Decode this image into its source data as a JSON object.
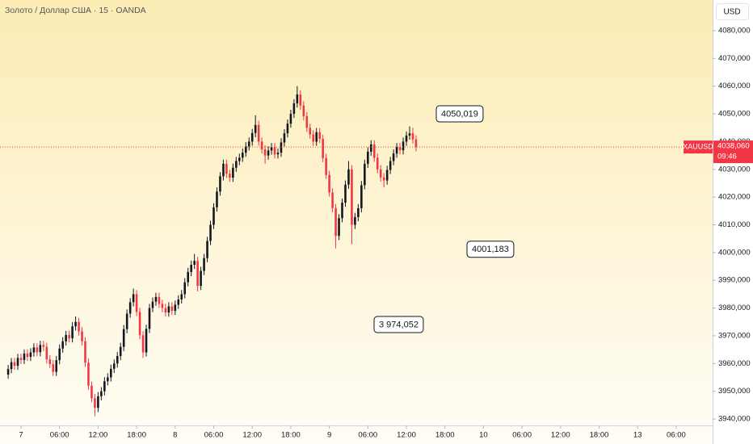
{
  "chart_data": {
    "type": "candlestick",
    "title": "Золото / Доллар США · 15 · OANDA",
    "currency": "USD",
    "symbol": "XAUUSD",
    "countdown": "09:46",
    "up_color": "#131722",
    "down_color": "#f23645",
    "x": [
      -2,
      -1.5,
      -1,
      -0.5,
      0,
      0.5,
      1,
      1.5,
      2,
      2.5,
      3,
      3.5,
      4,
      4.5,
      5,
      5.5,
      6,
      6.5,
      7,
      7.5,
      8,
      8.5,
      9,
      9.5,
      10,
      10.5,
      11,
      11.5,
      12,
      12.5,
      13,
      13.5,
      14,
      14.5,
      15,
      15.5,
      16,
      16.5,
      17,
      17.5,
      18,
      18.5,
      19,
      19.5,
      20,
      20.5,
      21,
      21.5,
      22,
      22.5,
      23,
      23.5,
      24,
      24.5,
      25,
      25.5,
      26,
      26.5,
      27,
      27.5,
      28,
      28.5,
      29,
      29.5,
      30,
      30.5,
      31,
      31.5,
      32,
      32.5,
      33,
      33.5,
      34,
      34.5,
      35,
      35.5,
      36,
      36.5,
      37,
      37.5,
      38,
      38.5,
      39,
      39.5,
      40,
      40.5,
      41,
      41.5,
      42,
      42.5,
      43,
      43.5,
      44,
      44.5,
      45,
      45.5,
      46,
      46.5,
      47,
      47.5,
      48,
      48.5,
      49,
      49.5,
      50,
      50.5,
      51,
      51.5,
      52,
      52.5,
      53,
      53.5,
      54,
      54.5,
      55,
      55.5,
      56,
      56.5,
      57,
      57.5,
      58,
      58.5,
      59,
      59.5,
      60,
      60.5,
      61,
      61.5
    ],
    "open": [
      3956,
      3958,
      3960.5,
      3959.2,
      3962,
      3961.3,
      3963.6,
      3962.4,
      3964,
      3965.8,
      3964.1,
      3966.7,
      3966,
      3961.5,
      3959.8,
      3957,
      3961.2,
      3965.4,
      3968,
      3970.3,
      3969.1,
      3973.4,
      3975,
      3971.6,
      3968,
      3960.3,
      3952,
      3947.5,
      3944,
      3948.2,
      3950,
      3953.6,
      3955,
      3958.1,
      3960,
      3962.7,
      3966,
      3972.4,
      3978,
      3982.1,
      3985,
      3978.6,
      3970.2,
      3964,
      3972.5,
      3980,
      3982.3,
      3984,
      3981.5,
      3980,
      3978.4,
      3980.6,
      3979,
      3981.2,
      3983.1,
      3985,
      3989.3,
      3993,
      3995.6,
      3997,
      3988,
      3993.4,
      3998,
      4004.2,
      4010,
      4016.3,
      4022,
      4027.5,
      4032,
      4028.4,
      4027,
      4030.6,
      4033,
      4034.2,
      4036,
      4038.3,
      4040,
      4043.1,
      4046,
      4040,
      4037.2,
      4035,
      4036.8,
      4038,
      4035.4,
      4036,
      4039.7,
      4043,
      4046.5,
      4050,
      4053.8,
      4057,
      4053,
      4049.2,
      4045,
      4042.6,
      4040,
      4043.4,
      4041,
      4034.1,
      4028,
      4021.7,
      4016,
      4006,
      4012.4,
      4018,
      4024.5,
      4030,
      4010,
      4012.8,
      4016,
      4024.3,
      4032,
      4036.4,
      4039,
      4034.2,
      4030,
      4027.1,
      4026,
      4029.8,
      4033,
      4035.7,
      4038,
      4036.9,
      4040,
      4042.2,
      4043,
      4040.8
    ],
    "high": [
      3959.5,
      3962,
      3962,
      3963.5,
      3963.5,
      3965.1,
      3965.1,
      3965.5,
      3967.3,
      3967.3,
      3968.2,
      3968.2,
      3967.5,
      3963,
      3961.3,
      3962.7,
      3966.9,
      3969.5,
      3971.8,
      3971.8,
      3974.9,
      3977,
      3976.5,
      3973.1,
      3969.5,
      3961.8,
      3953.5,
      3949,
      3949.7,
      3951.5,
      3955.1,
      3956.5,
      3959.6,
      3961.5,
      3964.2,
      3967.5,
      3973.9,
      3979.5,
      3983.6,
      3987,
      3986.5,
      3980.1,
      3971.7,
      3974,
      3981.5,
      3983.8,
      3985.5,
      3985.5,
      3983,
      3981.5,
      3982.1,
      3982.1,
      3982.7,
      3984.6,
      3986.5,
      3990.8,
      3994.5,
      3997.1,
      3999.5,
      3998.5,
      3994.9,
      3999.5,
      4005.7,
      4011.5,
      4017.8,
      4023.5,
      4029,
      4033.5,
      4033.5,
      4029.9,
      4032.1,
      4034.5,
      4035.7,
      4037.5,
      4039.8,
      4041.5,
      4044.6,
      4049.5,
      4047.5,
      4041.5,
      4038.7,
      4038.3,
      4039.5,
      4039.5,
      4037.5,
      4041.2,
      4044.5,
      4048,
      4051.5,
      4055.3,
      4060,
      4058.5,
      4054.5,
      4050.7,
      4046.5,
      4044.1,
      4044.9,
      4044.9,
      4042.5,
      4035.6,
      4029.5,
      4023.2,
      4017.5,
      4013.9,
      4019.5,
      4026,
      4033,
      4031.5,
      4014.3,
      4017.5,
      4025.8,
      4033.5,
      4037.9,
      4040.5,
      4040.5,
      4035.7,
      4031.5,
      4028.6,
      4031.3,
      4034.5,
      4037.2,
      4039.5,
      4039.5,
      4041.5,
      4043.7,
      4045.5,
      4045,
      4042.3
    ],
    "low": [
      3954.5,
      3956.5,
      3957.7,
      3957.7,
      3959.8,
      3959.8,
      3960.9,
      3960.9,
      3962.5,
      3962.6,
      3962.6,
      3964.5,
      3960,
      3958.3,
      3955.5,
      3955.5,
      3959.7,
      3963.9,
      3966.5,
      3967.6,
      3967.6,
      3971.9,
      3970.1,
      3966.5,
      3958.8,
      3950.5,
      3946,
      3941,
      3942.5,
      3946.7,
      3948.5,
      3952.1,
      3953.5,
      3956.6,
      3958.5,
      3961.2,
      3964.5,
      3970.9,
      3976.5,
      3980.6,
      3977.1,
      3968.7,
      3962,
      3962.5,
      3971,
      3978.5,
      3980.8,
      3980,
      3978.5,
      3976.9,
      3976.9,
      3977.5,
      3977.5,
      3979.7,
      3981.6,
      3983.5,
      3987.8,
      3991.5,
      3994.1,
      3986,
      3986.5,
      3991.9,
      3996.5,
      4002.7,
      4008.5,
      4014.8,
      4020.5,
      4026,
      4026.9,
      4025.5,
      4025.5,
      4029.1,
      4031.5,
      4032.7,
      4034.5,
      4036.8,
      4038.5,
      4041.6,
      4038.5,
      4035.7,
      4032,
      4033.5,
      4035.3,
      4033.9,
      4033.9,
      4034.5,
      4038.2,
      4041.5,
      4045,
      4048.5,
      4052.3,
      4051.5,
      4047.7,
      4043.5,
      4041.1,
      4038.5,
      4038.5,
      4039.5,
      4032.6,
      4026.5,
      4020.2,
      4014.5,
      4001.5,
      4004.5,
      4010.9,
      4016.5,
      4023,
      4003,
      4008.5,
      4011.3,
      4014.5,
      4022.8,
      4030.5,
      4034.9,
      4032.7,
      4028.5,
      4025.6,
      4023.5,
      4024.5,
      4028.3,
      4031.5,
      4034.2,
      4035.4,
      4035.4,
      4038.5,
      4040.7,
      4039.3,
      4036.5
    ],
    "close": [
      3958,
      3960.5,
      3959.2,
      3962,
      3961.3,
      3963.6,
      3962.4,
      3964,
      3965.8,
      3964.1,
      3966.7,
      3966,
      3961.5,
      3959.8,
      3957,
      3961.2,
      3965.4,
      3968,
      3970.3,
      3969.1,
      3973.4,
      3975,
      3971.6,
      3968,
      3960.3,
      3952,
      3947.5,
      3944,
      3948.2,
      3950,
      3953.6,
      3955,
      3958.1,
      3960,
      3962.7,
      3966,
      3972.4,
      3978,
      3982.1,
      3985,
      3978.6,
      3970.2,
      3964,
      3972.5,
      3980,
      3982.3,
      3984,
      3981.5,
      3980,
      3978.4,
      3980.6,
      3979,
      3981.2,
      3983.1,
      3985,
      3989.3,
      3993,
      3995.6,
      3997,
      3988,
      3993.4,
      3998,
      4004.2,
      4010,
      4016.3,
      4022,
      4027.5,
      4032,
      4028.4,
      4027,
      4030.6,
      4033,
      4034.2,
      4036,
      4038.3,
      4040,
      4043.1,
      4046,
      4040,
      4037.2,
      4035,
      4036.8,
      4038,
      4035.4,
      4036,
      4039.7,
      4043,
      4046.5,
      4050,
      4053.8,
      4057,
      4053,
      4049.2,
      4045,
      4042.6,
      4040,
      4043.4,
      4041,
      4034.1,
      4028,
      4021.7,
      4016,
      4006,
      4012.4,
      4018,
      4024.5,
      4030,
      4010,
      4012.8,
      4016,
      4024.3,
      4032,
      4036.4,
      4039,
      4034.2,
      4030,
      4027.1,
      4026,
      4029.8,
      4033,
      4035.7,
      4038,
      4036.9,
      4040,
      4042.2,
      4043,
      4040.8,
      4038.06
    ],
    "last_price": {
      "value": 4038.06,
      "label": "4038,060"
    },
    "annotations": [
      {
        "value": 4050.019,
        "label": "4050,019"
      },
      {
        "value": 4001.183,
        "label": "4001,183"
      },
      {
        "value": 3974.052,
        "label": "3 974,052"
      }
    ],
    "xlim": [
      -3.27,
      107.67
    ],
    "xticks": [
      {
        "value": 0,
        "label": "7"
      },
      {
        "value": 6,
        "label": "06:00"
      },
      {
        "value": 12,
        "label": "12:00"
      },
      {
        "value": 18,
        "label": "18:00"
      },
      {
        "value": 24,
        "label": "8"
      },
      {
        "value": 30,
        "label": "06:00"
      },
      {
        "value": 36,
        "label": "12:00"
      },
      {
        "value": 42,
        "label": "18:00"
      },
      {
        "value": 48,
        "label": "9"
      },
      {
        "value": 54,
        "label": "06:00"
      },
      {
        "value": 60,
        "label": "12:00"
      },
      {
        "value": 66,
        "label": "18:00"
      },
      {
        "value": 72,
        "label": "10"
      },
      {
        "value": 78,
        "label": "06:00"
      },
      {
        "value": 84,
        "label": "12:00"
      },
      {
        "value": 90,
        "label": "18:00"
      },
      {
        "value": 96,
        "label": "13"
      },
      {
        "value": 102,
        "label": "06:00"
      }
    ],
    "ylim": [
      3937.68,
      4091.06
    ],
    "yticks": [
      {
        "value": 3940,
        "label": "3940,000"
      },
      {
        "value": 3950,
        "label": "3950,000"
      },
      {
        "value": 3960,
        "label": "3960,000"
      },
      {
        "value": 3970,
        "label": "3970,000"
      },
      {
        "value": 3980,
        "label": "3980,000"
      },
      {
        "value": 3990,
        "label": "3990,000"
      },
      {
        "value": 4000,
        "label": "4000,000"
      },
      {
        "value": 4010,
        "label": "4010,000"
      },
      {
        "value": 4020,
        "label": "4020,000"
      },
      {
        "value": 4030,
        "label": "4030,000"
      },
      {
        "value": 4040,
        "label": "4040,000"
      },
      {
        "value": 4050,
        "label": "4050,000"
      },
      {
        "value": 4060,
        "label": "4060,000"
      },
      {
        "value": 4070,
        "label": "4070,000"
      },
      {
        "value": 4080,
        "label": "4080,000"
      }
    ]
  }
}
